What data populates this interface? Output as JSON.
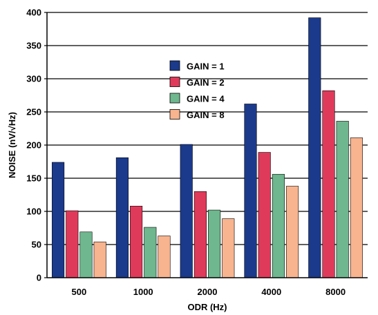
{
  "chart_data": {
    "type": "bar",
    "xlabel": "ODR (Hz)",
    "ylabel": "NOISE (nV/√Hz)",
    "categories": [
      "500",
      "1000",
      "2000",
      "4000",
      "8000"
    ],
    "ylim": [
      0,
      400
    ],
    "yticks": [
      0,
      50,
      100,
      150,
      200,
      250,
      300,
      350,
      400
    ],
    "grid": "horizontal",
    "legend_position": "upper-center",
    "series": [
      {
        "name": "GAIN = 1",
        "color": "#1b3a8c",
        "values": [
          174,
          181,
          201,
          262,
          392
        ]
      },
      {
        "name": "GAIN = 2",
        "color": "#e03a5a",
        "values": [
          101,
          108,
          130,
          189,
          282
        ]
      },
      {
        "name": "GAIN = 4",
        "color": "#6fb78e",
        "values": [
          69,
          76,
          102,
          156,
          236
        ]
      },
      {
        "name": "GAIN = 8",
        "color": "#f7b48f",
        "values": [
          54,
          63,
          89,
          138,
          211
        ]
      }
    ]
  }
}
